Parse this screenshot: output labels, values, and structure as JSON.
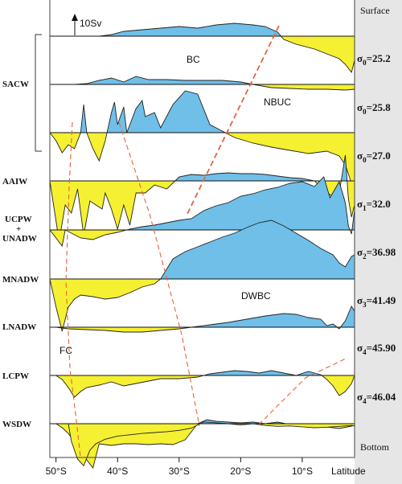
{
  "chart_data": {
    "type": "area",
    "title": "",
    "xlabel": "Latitude",
    "x_axis": {
      "ticks": [
        "50°S",
        "40°S",
        "30°S",
        "20°S",
        "10°S"
      ],
      "tick_values": [
        -50,
        -40,
        -30,
        -20,
        -10
      ],
      "range": [
        -51,
        -1.5
      ]
    },
    "scale_bar": {
      "label": "10Sv",
      "value": 10,
      "unit": "Sv"
    },
    "sign_convention": {
      "positive_color": "#6fbfe8",
      "negative_color": "#f5f031"
    },
    "right_labels": [
      {
        "text": "Surface"
      },
      {
        "sym": "σ",
        "sub": "0",
        "val": "=25.2"
      },
      {
        "sym": "σ",
        "sub": "0",
        "val": "=25.8"
      },
      {
        "sym": "σ",
        "sub": "0",
        "val": "=27.0"
      },
      {
        "sym": "σ",
        "sub": "1",
        "val": "=32.0"
      },
      {
        "sym": "σ",
        "sub": "2",
        "val": "=36.98"
      },
      {
        "sym": "σ",
        "sub": "3",
        "val": "=41.49"
      },
      {
        "sym": "σ",
        "sub": "4",
        "val": "=45.90"
      },
      {
        "sym": "σ",
        "sub": "4",
        "val": "=46.04"
      },
      {
        "text": "Bottom"
      }
    ],
    "annotations": [
      "BC",
      "NBUC",
      "DWBC",
      "FC"
    ],
    "layer_group": "SACW",
    "series": [
      {
        "name": "",
        "label_lines": [],
        "points": [
          [
            -43,
            0
          ],
          [
            -41,
            0.2
          ],
          [
            -39,
            0.6
          ],
          [
            -36,
            0.8
          ],
          [
            -33,
            1
          ],
          [
            -30,
            1.2
          ],
          [
            -27,
            1
          ],
          [
            -24,
            1.4
          ],
          [
            -21,
            1.6
          ],
          [
            -18,
            1.4
          ],
          [
            -16,
            1.2
          ],
          [
            -14,
            0.5
          ],
          [
            -13,
            -0.4
          ],
          [
            -11,
            -1
          ],
          [
            -8,
            -1.6
          ],
          [
            -6,
            -2.2
          ],
          [
            -4,
            -2.8
          ],
          [
            -3,
            -3.5
          ],
          [
            -2,
            -4.5
          ],
          [
            -1.5,
            -3
          ]
        ]
      },
      {
        "name": "SACW",
        "label_lines": [
          "SACW"
        ],
        "points": [
          [
            -47,
            0
          ],
          [
            -45,
            0.1
          ],
          [
            -43,
            0.5
          ],
          [
            -41,
            0.8
          ],
          [
            -39,
            0.3
          ],
          [
            -37,
            1
          ],
          [
            -35,
            0.6
          ],
          [
            -32,
            0.6
          ],
          [
            -29,
            0.5
          ],
          [
            -26,
            0.5
          ],
          [
            -23,
            0.5
          ],
          [
            -20,
            0.3
          ],
          [
            -18,
            0
          ],
          [
            -15,
            -0.4
          ],
          [
            -12,
            -0.5
          ],
          [
            -9,
            -0.6
          ],
          [
            -6,
            -0.6
          ],
          [
            -3,
            -0.7
          ],
          [
            -1.5,
            -0.6
          ]
        ]
      },
      {
        "name": "",
        "label_lines": [],
        "points": [
          [
            -51,
            0
          ],
          [
            -50,
            -1
          ],
          [
            -49,
            -2.5
          ],
          [
            -48,
            -1.5
          ],
          [
            -47,
            -2
          ],
          [
            -46,
            0
          ],
          [
            -45.5,
            3.5
          ],
          [
            -45,
            0
          ],
          [
            -44,
            -2
          ],
          [
            -43,
            -3.5
          ],
          [
            -42,
            -1
          ],
          [
            -41,
            2.5
          ],
          [
            -40.5,
            3.8
          ],
          [
            -40,
            1
          ],
          [
            -39,
            3.2
          ],
          [
            -38.5,
            0
          ],
          [
            -37,
            3
          ],
          [
            -36,
            4
          ],
          [
            -35.5,
            2
          ],
          [
            -34,
            2.5
          ],
          [
            -33,
            0.6
          ],
          [
            -31,
            3.5
          ],
          [
            -29,
            5.2
          ],
          [
            -27,
            4.8
          ],
          [
            -25,
            1
          ],
          [
            -23,
            0.2
          ],
          [
            -21,
            -0.6
          ],
          [
            -18,
            -1.3
          ],
          [
            -15,
            -1.8
          ],
          [
            -12,
            -2.2
          ],
          [
            -9,
            -2.6
          ],
          [
            -6,
            -2.3
          ],
          [
            -4,
            -2.9
          ],
          [
            -3,
            -4
          ],
          [
            -2,
            -6.3
          ],
          [
            -1.5,
            -6.5
          ]
        ]
      },
      {
        "name": "AAIW",
        "label_lines": [
          "AAIW"
        ],
        "points": [
          [
            -51,
            0
          ],
          [
            -50,
            -5
          ],
          [
            -49.5,
            -7.5
          ],
          [
            -48.5,
            -3
          ],
          [
            -47.5,
            -4
          ],
          [
            -46.5,
            -1
          ],
          [
            -45.5,
            -6.8
          ],
          [
            -44.5,
            -2.5
          ],
          [
            -43.5,
            -3
          ],
          [
            -42.5,
            -3.5
          ],
          [
            -42,
            -1.5
          ],
          [
            -41,
            -3.5
          ],
          [
            -40,
            -6
          ],
          [
            -39,
            -3
          ],
          [
            -38,
            -5.5
          ],
          [
            -37,
            -1.5
          ],
          [
            -35.5,
            -1.5
          ],
          [
            -34,
            -0.5
          ],
          [
            -32,
            -1
          ],
          [
            -30,
            0.5
          ],
          [
            -28,
            0.8
          ],
          [
            -26,
            0.7
          ],
          [
            -24,
            0.9
          ],
          [
            -22,
            1
          ],
          [
            -20,
            0.9
          ],
          [
            -18,
            0.9
          ],
          [
            -16,
            0.8
          ],
          [
            -14,
            0.6
          ],
          [
            -12,
            0.4
          ],
          [
            -10,
            0.3
          ],
          [
            -8,
            0
          ],
          [
            -7,
            -0.8
          ],
          [
            -5,
            -2
          ],
          [
            -4,
            -1.5
          ],
          [
            -3,
            3.2
          ],
          [
            -2.5,
            -2.2
          ],
          [
            -2,
            -4.5
          ],
          [
            -1.5,
            -3
          ]
        ]
      },
      {
        "name": "UCPW + UNADW",
        "label_lines": [
          "UCPW",
          "+",
          "UNADW"
        ],
        "points": [
          [
            -51,
            0
          ],
          [
            -49,
            -2
          ],
          [
            -48.5,
            0
          ],
          [
            -46,
            -1
          ],
          [
            -44,
            -1.2
          ],
          [
            -42,
            -0.6
          ],
          [
            -40,
            -0.3
          ],
          [
            -38,
            0.1
          ],
          [
            -36,
            0.4
          ],
          [
            -34,
            0.6
          ],
          [
            -32,
            0.9
          ],
          [
            -30,
            1.2
          ],
          [
            -28,
            1.4
          ],
          [
            -26,
            2.4
          ],
          [
            -24,
            3
          ],
          [
            -22,
            3.4
          ],
          [
            -20,
            4.2
          ],
          [
            -18,
            4.5
          ],
          [
            -16,
            5
          ],
          [
            -14,
            5.3
          ],
          [
            -12,
            5.8
          ],
          [
            -10,
            6
          ],
          [
            -8,
            5.4
          ],
          [
            -6.5,
            6.6
          ],
          [
            -5.5,
            4
          ],
          [
            -4,
            6
          ],
          [
            -3,
            3.4
          ],
          [
            -2.5,
            0.5
          ],
          [
            -2,
            -0.5
          ],
          [
            -1.5,
            2.5
          ]
        ]
      },
      {
        "name": "",
        "label_lines": [],
        "points": [
          [
            -51,
            0
          ],
          [
            -50,
            -3.5
          ],
          [
            -49,
            -6.5
          ],
          [
            -48,
            -3.5
          ],
          [
            -47,
            -2.5
          ],
          [
            -46,
            -2
          ],
          [
            -44,
            -2.2
          ],
          [
            -42,
            -2.5
          ],
          [
            -40,
            -2.3
          ],
          [
            -38,
            -1.7
          ],
          [
            -36,
            -1
          ],
          [
            -34,
            -0.6
          ],
          [
            -33,
            0
          ],
          [
            -31,
            2.5
          ],
          [
            -29,
            3.4
          ],
          [
            -27,
            4
          ],
          [
            -25,
            4.6
          ],
          [
            -23,
            5.2
          ],
          [
            -21,
            5.7
          ],
          [
            -19,
            6.4
          ],
          [
            -17,
            7
          ],
          [
            -15,
            7.3
          ],
          [
            -13,
            6.6
          ],
          [
            -11,
            5.7
          ],
          [
            -9,
            4.8
          ],
          [
            -7,
            3.8
          ],
          [
            -5,
            3
          ],
          [
            -4,
            2
          ],
          [
            -3,
            1.5
          ],
          [
            -2,
            2.8
          ],
          [
            -1.5,
            3
          ]
        ]
      },
      {
        "name": "MNADW",
        "label_lines": [
          "MNADW"
        ],
        "points": [
          [
            -50,
            0
          ],
          [
            -48,
            -0.2
          ],
          [
            -45,
            -0.3
          ],
          [
            -42,
            -0.4
          ],
          [
            -39,
            -0.6
          ],
          [
            -36,
            -0.6
          ],
          [
            -33,
            -0.4
          ],
          [
            -30,
            -0.2
          ],
          [
            -28,
            0
          ],
          [
            -25,
            0.3
          ],
          [
            -22,
            0.6
          ],
          [
            -19,
            1
          ],
          [
            -16,
            1.4
          ],
          [
            -13,
            1.7
          ],
          [
            -11,
            1.6
          ],
          [
            -9,
            1.2
          ],
          [
            -7,
            1
          ],
          [
            -6,
            0.2
          ],
          [
            -5,
            0.4
          ],
          [
            -4,
            -0.2
          ],
          [
            -3,
            0.8
          ],
          [
            -2,
            2.6
          ],
          [
            -1.5,
            2
          ]
        ]
      },
      {
        "name": "LNADW",
        "label_lines": [
          "LNADW"
        ],
        "points": [
          [
            -50,
            0
          ],
          [
            -49,
            -0.5
          ],
          [
            -48,
            -1.5
          ],
          [
            -47,
            -2.7
          ],
          [
            -46,
            -2
          ],
          [
            -45,
            -1.5
          ],
          [
            -43,
            -1.2
          ],
          [
            -41,
            -0.8
          ],
          [
            -39,
            -1.3
          ],
          [
            -37,
            -1
          ],
          [
            -35,
            -0.7
          ],
          [
            -33,
            -0.4
          ],
          [
            -30,
            -0.4
          ],
          [
            -27,
            -0.2
          ],
          [
            -25,
            0.2
          ],
          [
            -23,
            0.4
          ],
          [
            -21,
            0.6
          ],
          [
            -19,
            0.5
          ],
          [
            -17,
            0.3
          ],
          [
            -15,
            0.6
          ],
          [
            -13,
            0.3
          ],
          [
            -11,
            0
          ],
          [
            -9,
            0.5
          ],
          [
            -7,
            0.1
          ],
          [
            -6,
            -0.5
          ],
          [
            -5,
            -1.3
          ],
          [
            -4,
            -2.5
          ],
          [
            -3,
            -2
          ],
          [
            -2,
            -1
          ],
          [
            -1.5,
            0
          ]
        ]
      },
      {
        "name": "LCPW",
        "label_lines": [
          "LCPW"
        ],
        "points": [
          [
            -50,
            0
          ],
          [
            -49,
            -0.5
          ],
          [
            -48,
            -1.2
          ],
          [
            -47,
            -2.3
          ],
          [
            -46,
            -3.5
          ],
          [
            -45,
            -4.5
          ],
          [
            -44,
            -5.5
          ],
          [
            -43,
            -2.5
          ],
          [
            -41,
            -2.7
          ],
          [
            -39,
            -2.5
          ],
          [
            -37,
            -2.5
          ],
          [
            -35,
            -2.6
          ],
          [
            -33,
            -2.5
          ],
          [
            -31,
            -2.6
          ],
          [
            -29,
            -2
          ],
          [
            -28,
            -1
          ],
          [
            -27,
            0
          ],
          [
            -25.5,
            0.5
          ],
          [
            -24,
            0.3
          ],
          [
            -22,
            0.2
          ],
          [
            -20,
            0.1
          ],
          [
            -18,
            0.2
          ],
          [
            -16,
            0
          ],
          [
            -14,
            0.2
          ],
          [
            -12,
            -0.1
          ],
          [
            -10,
            -0.3
          ],
          [
            -8,
            -0.2
          ],
          [
            -6,
            -0.4
          ],
          [
            -4,
            -0.6
          ],
          [
            -2,
            -0.3
          ],
          [
            -1.5,
            -0.2
          ]
        ]
      },
      {
        "name": "WSDW",
        "label_lines": [
          "WSDW"
        ],
        "points": []
      }
    ]
  }
}
